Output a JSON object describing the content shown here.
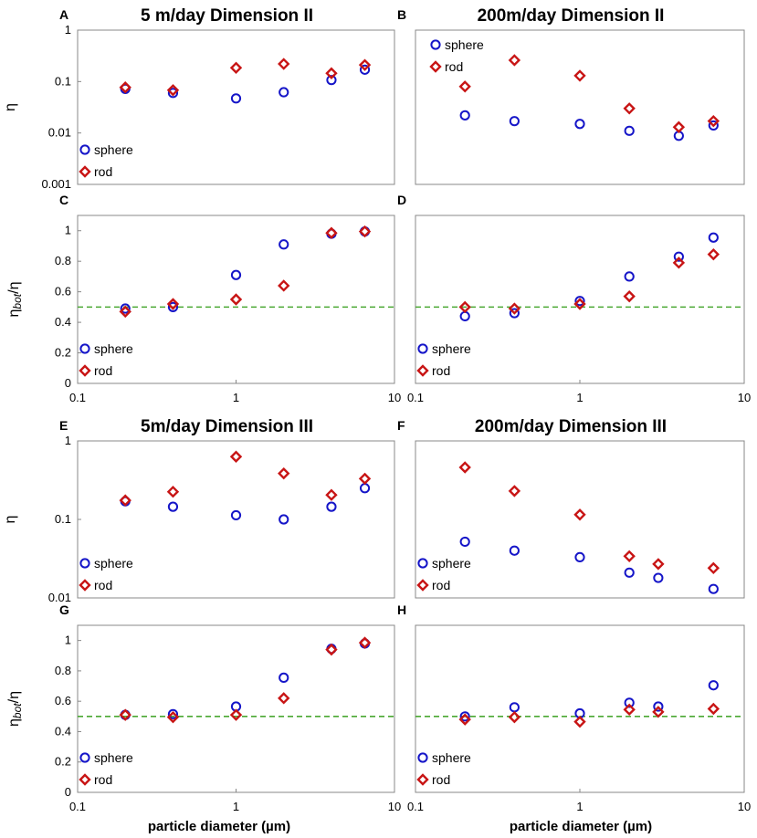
{
  "figure": {
    "xlabel_left": "particle diameter (µm)",
    "xlabel_right": "particle diameter (µm)"
  },
  "chart_data": [
    {
      "id": "A",
      "type": "scatter",
      "title": "5 m/day Dimension II",
      "ylabel": "η",
      "xscale": "log",
      "yscale": "log",
      "xlim": [
        0.1,
        10
      ],
      "ylim": [
        0.001,
        1
      ],
      "yticks": [
        "0.001",
        "0.01",
        "0.1",
        "1"
      ],
      "legend": "bottom-left",
      "series": [
        {
          "name": "sphere",
          "marker": "circle",
          "color": "#1515c8",
          "x": [
            0.2,
            0.4,
            1.0,
            2.0,
            4.0,
            6.5
          ],
          "y": [
            0.072,
            0.06,
            0.047,
            0.062,
            0.107,
            0.17
          ]
        },
        {
          "name": "rod",
          "marker": "diamond",
          "color": "#c81515",
          "x": [
            0.2,
            0.4,
            1.0,
            2.0,
            4.0,
            6.5
          ],
          "y": [
            0.077,
            0.068,
            0.185,
            0.22,
            0.145,
            0.21
          ]
        }
      ]
    },
    {
      "id": "B",
      "type": "scatter",
      "title": "200m/day Dimension II",
      "ylabel": "",
      "xscale": "log",
      "yscale": "log",
      "xlim": [
        0.1,
        10
      ],
      "ylim": [
        0.001,
        1
      ],
      "legend": "top-left",
      "series": [
        {
          "name": "sphere",
          "marker": "circle",
          "color": "#1515c8",
          "x": [
            0.2,
            0.4,
            1.0,
            2.0,
            4.0,
            6.5
          ],
          "y": [
            0.022,
            0.017,
            0.015,
            0.011,
            0.0088,
            0.014
          ]
        },
        {
          "name": "rod",
          "marker": "diamond",
          "color": "#c81515",
          "x": [
            0.2,
            0.4,
            1.0,
            2.0,
            4.0,
            6.5
          ],
          "y": [
            0.08,
            0.26,
            0.13,
            0.03,
            0.013,
            0.017
          ]
        }
      ]
    },
    {
      "id": "C",
      "type": "scatter",
      "title": "",
      "ylabel": "ηbot/η",
      "xscale": "log",
      "yscale": "linear",
      "xlim": [
        0.1,
        10
      ],
      "ylim": [
        0,
        1.1
      ],
      "xticks": [
        "0.1",
        "1",
        "10"
      ],
      "yticks": [
        "0",
        "0.2",
        "0.4",
        "0.6",
        "0.8",
        "1"
      ],
      "reference_line": 0.5,
      "legend": "bottom-left",
      "series": [
        {
          "name": "sphere",
          "marker": "circle",
          "color": "#1515c8",
          "x": [
            0.2,
            0.4,
            1.0,
            2.0,
            4.0,
            6.5
          ],
          "y": [
            0.49,
            0.5,
            0.71,
            0.91,
            0.98,
            0.995
          ]
        },
        {
          "name": "rod",
          "marker": "diamond",
          "color": "#c81515",
          "x": [
            0.2,
            0.4,
            1.0,
            2.0,
            4.0,
            6.5
          ],
          "y": [
            0.47,
            0.52,
            0.55,
            0.64,
            0.985,
            0.995
          ]
        }
      ]
    },
    {
      "id": "D",
      "type": "scatter",
      "title": "",
      "ylabel": "",
      "xscale": "log",
      "yscale": "linear",
      "xlim": [
        0.1,
        10
      ],
      "ylim": [
        0,
        1.1
      ],
      "xticks": [
        "0.1",
        "1",
        "10"
      ],
      "reference_line": 0.5,
      "legend": "bottom-left",
      "series": [
        {
          "name": "sphere",
          "marker": "circle",
          "color": "#1515c8",
          "x": [
            0.2,
            0.4,
            1.0,
            2.0,
            4.0,
            6.5
          ],
          "y": [
            0.44,
            0.46,
            0.54,
            0.7,
            0.83,
            0.955
          ]
        },
        {
          "name": "rod",
          "marker": "diamond",
          "color": "#c81515",
          "x": [
            0.2,
            0.4,
            1.0,
            2.0,
            4.0,
            6.5
          ],
          "y": [
            0.5,
            0.49,
            0.52,
            0.57,
            0.79,
            0.845
          ]
        }
      ]
    },
    {
      "id": "E",
      "type": "scatter",
      "title": "5m/day Dimension III",
      "ylabel": "η",
      "xscale": "log",
      "yscale": "log",
      "xlim": [
        0.1,
        10
      ],
      "ylim": [
        0.01,
        1
      ],
      "yticks": [
        "0.01",
        "0.1",
        "1"
      ],
      "legend": "bottom-left",
      "series": [
        {
          "name": "sphere",
          "marker": "circle",
          "color": "#1515c8",
          "x": [
            0.2,
            0.4,
            1.0,
            2.0,
            4.0,
            6.5
          ],
          "y": [
            0.17,
            0.145,
            0.113,
            0.1,
            0.145,
            0.25
          ]
        },
        {
          "name": "rod",
          "marker": "diamond",
          "color": "#c81515",
          "x": [
            0.2,
            0.4,
            1.0,
            2.0,
            4.0,
            6.5
          ],
          "y": [
            0.175,
            0.225,
            0.63,
            0.385,
            0.205,
            0.33
          ]
        }
      ]
    },
    {
      "id": "F",
      "type": "scatter",
      "title": "200m/day Dimension III",
      "ylabel": "",
      "xscale": "log",
      "yscale": "log",
      "xlim": [
        0.1,
        10
      ],
      "ylim": [
        0.01,
        1
      ],
      "legend": "bottom-left",
      "series": [
        {
          "name": "sphere",
          "marker": "circle",
          "color": "#1515c8",
          "x": [
            0.2,
            0.4,
            1.0,
            2.0,
            3.0,
            6.5
          ],
          "y": [
            0.052,
            0.04,
            0.033,
            0.021,
            0.018,
            0.013
          ]
        },
        {
          "name": "rod",
          "marker": "diamond",
          "color": "#c81515",
          "x": [
            0.2,
            0.4,
            1.0,
            2.0,
            3.0,
            6.5
          ],
          "y": [
            0.46,
            0.23,
            0.115,
            0.034,
            0.027,
            0.024
          ]
        }
      ]
    },
    {
      "id": "G",
      "type": "scatter",
      "title": "",
      "ylabel": "ηbot/η",
      "xscale": "log",
      "yscale": "linear",
      "xlim": [
        0.1,
        10
      ],
      "ylim": [
        0,
        1.1
      ],
      "xticks": [
        "0.1",
        "1",
        "10"
      ],
      "yticks": [
        "0",
        "0.2",
        "0.4",
        "0.6",
        "0.8",
        "1"
      ],
      "reference_line": 0.5,
      "legend": "bottom-left",
      "series": [
        {
          "name": "sphere",
          "marker": "circle",
          "color": "#1515c8",
          "x": [
            0.2,
            0.4,
            1.0,
            2.0,
            4.0,
            6.5
          ],
          "y": [
            0.51,
            0.515,
            0.565,
            0.755,
            0.945,
            0.98
          ]
        },
        {
          "name": "rod",
          "marker": "diamond",
          "color": "#c81515",
          "x": [
            0.2,
            0.4,
            1.0,
            2.0,
            4.0,
            6.5
          ],
          "y": [
            0.51,
            0.495,
            0.51,
            0.62,
            0.94,
            0.985
          ]
        }
      ]
    },
    {
      "id": "H",
      "type": "scatter",
      "title": "",
      "ylabel": "",
      "xscale": "log",
      "yscale": "linear",
      "xlim": [
        0.1,
        10
      ],
      "ylim": [
        0,
        1.1
      ],
      "xticks": [
        "0.1",
        "1",
        "10"
      ],
      "reference_line": 0.5,
      "legend": "bottom-left",
      "series": [
        {
          "name": "sphere",
          "marker": "circle",
          "color": "#1515c8",
          "x": [
            0.2,
            0.4,
            1.0,
            2.0,
            3.0,
            6.5
          ],
          "y": [
            0.5,
            0.56,
            0.52,
            0.59,
            0.565,
            0.705
          ]
        },
        {
          "name": "rod",
          "marker": "diamond",
          "color": "#c81515",
          "x": [
            0.2,
            0.4,
            1.0,
            2.0,
            3.0,
            6.5
          ],
          "y": [
            0.48,
            0.495,
            0.465,
            0.545,
            0.53,
            0.55
          ]
        }
      ]
    }
  ]
}
